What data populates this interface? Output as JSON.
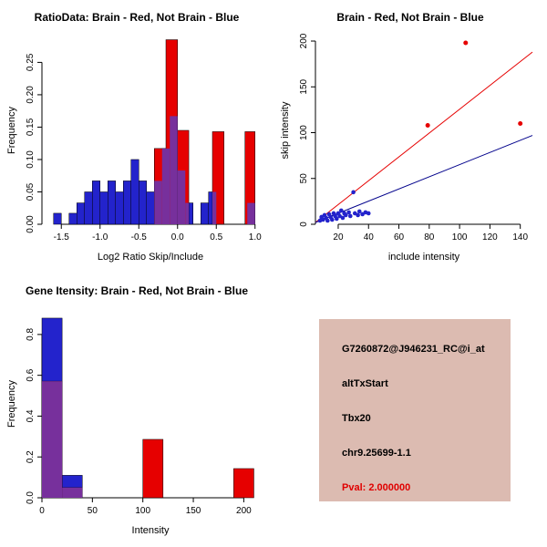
{
  "page": {
    "background": "#ffffff"
  },
  "colors": {
    "red": "#e60000",
    "blue": "#2323cc",
    "overlap": "#77309c",
    "navy": "#00008b",
    "axis": "#000000",
    "info_box_bg": "#dcbbb1",
    "pval_red": "#e00000"
  },
  "chart_data": [
    {
      "id": "ratio_hist",
      "type": "bar",
      "title": "RatioData: Brain - Red, Not Brain - Blue",
      "xlabel": "Log2 Ratio Skip/Include",
      "ylabel": "Frequency",
      "xlim": [
        -1.75,
        1.05
      ],
      "ylim": [
        0,
        0.29
      ],
      "xticks": [
        -1.5,
        -1.0,
        -0.5,
        0.0,
        0.5,
        1.0
      ],
      "yticks": [
        0.0,
        0.05,
        0.1,
        0.15,
        0.2,
        0.25
      ],
      "xtick_dec": 1,
      "ytick_dec": 2,
      "bin_format": "[x_start, x_end, frequency]",
      "blue_bins": [
        [
          -1.6,
          -1.5,
          0.017
        ],
        [
          -1.4,
          -1.3,
          0.017
        ],
        [
          -1.3,
          -1.2,
          0.033
        ],
        [
          -1.2,
          -1.1,
          0.05
        ],
        [
          -1.1,
          -1.0,
          0.067
        ],
        [
          -1.0,
          -0.9,
          0.05
        ],
        [
          -0.9,
          -0.8,
          0.067
        ],
        [
          -0.8,
          -0.7,
          0.05
        ],
        [
          -0.7,
          -0.6,
          0.067
        ],
        [
          -0.6,
          -0.5,
          0.1
        ],
        [
          -0.5,
          -0.4,
          0.067
        ],
        [
          -0.4,
          -0.3,
          0.05
        ],
        [
          -0.3,
          -0.2,
          0.067
        ],
        [
          -0.2,
          -0.1,
          0.117
        ],
        [
          -0.1,
          0.0,
          0.167
        ],
        [
          0.0,
          0.1,
          0.083
        ],
        [
          0.1,
          0.2,
          0.033
        ],
        [
          0.3,
          0.4,
          0.033
        ],
        [
          0.4,
          0.5,
          0.05
        ],
        [
          0.9,
          1.0,
          0.033
        ]
      ],
      "red_bins": [
        [
          -0.3,
          -0.15,
          0.117
        ],
        [
          -0.15,
          0.0,
          0.285
        ],
        [
          0.0,
          0.145,
          0.145
        ],
        [
          0.45,
          0.6,
          0.143
        ],
        [
          0.87,
          1.0,
          0.143
        ]
      ]
    },
    {
      "id": "scatter",
      "type": "scatter",
      "title": "Brain - Red, Not Brain - Blue",
      "xlabel": "include intensity",
      "ylabel": "skip intensity",
      "xlim": [
        5,
        148
      ],
      "ylim": [
        0,
        205
      ],
      "xticks": [
        20,
        40,
        60,
        80,
        100,
        120,
        140
      ],
      "yticks": [
        0,
        50,
        100,
        150,
        200
      ],
      "xtick_dec": 0,
      "ytick_dec": 0,
      "blue_points": [
        [
          8,
          4
        ],
        [
          9,
          8
        ],
        [
          10,
          5
        ],
        [
          11,
          10
        ],
        [
          12,
          7
        ],
        [
          13,
          4
        ],
        [
          14,
          11
        ],
        [
          15,
          8
        ],
        [
          16,
          5
        ],
        [
          17,
          12
        ],
        [
          18,
          9
        ],
        [
          19,
          6
        ],
        [
          20,
          12
        ],
        [
          21,
          9
        ],
        [
          22,
          15
        ],
        [
          23,
          7
        ],
        [
          24,
          12
        ],
        [
          25,
          10
        ],
        [
          27,
          13
        ],
        [
          28,
          9
        ],
        [
          30,
          35
        ],
        [
          31,
          12
        ],
        [
          33,
          10
        ],
        [
          34,
          14
        ],
        [
          36,
          11
        ],
        [
          38,
          13
        ],
        [
          40,
          12
        ]
      ],
      "red_points": [
        [
          79,
          108
        ],
        [
          104,
          198
        ],
        [
          140,
          110
        ]
      ],
      "red_line": {
        "x1": 5,
        "y1": 2,
        "x2": 148,
        "y2": 188
      },
      "blue_line": {
        "x1": 5,
        "y1": 2,
        "x2": 148,
        "y2": 97
      }
    },
    {
      "id": "gene_hist",
      "type": "bar",
      "title": "Gene Itensity: Brain - Red, Not Brain - Blue",
      "xlabel": "Intensity",
      "ylabel": "Frequency",
      "xlim": [
        0,
        215
      ],
      "ylim": [
        0,
        0.92
      ],
      "xticks": [
        0,
        50,
        100,
        150,
        200
      ],
      "yticks": [
        0.0,
        0.2,
        0.4,
        0.6,
        0.8
      ],
      "xtick_dec": 0,
      "ytick_dec": 1,
      "bin_format": "[x_start, x_end, frequency]",
      "blue_bins": [
        [
          0,
          20,
          0.88
        ],
        [
          20,
          40,
          0.11
        ]
      ],
      "red_bins": [
        [
          0,
          20,
          0.571
        ],
        [
          20,
          40,
          0.05
        ],
        [
          100,
          120,
          0.286
        ],
        [
          190,
          210,
          0.143
        ]
      ]
    }
  ],
  "infobox": {
    "lines": [
      {
        "text": "G7260872@J946231_RC@i_at",
        "color": "black"
      },
      {
        "text": "altTxStart",
        "color": "black"
      },
      {
        "text": "Tbx20",
        "color": "black"
      },
      {
        "text": "chr9.25699-1.1",
        "color": "black"
      },
      {
        "text": "Pval: 2.000000",
        "color": "red"
      }
    ]
  }
}
